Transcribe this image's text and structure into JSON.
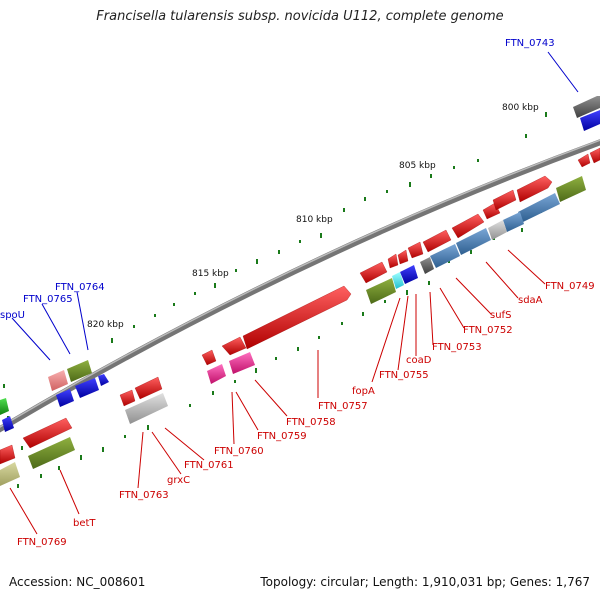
{
  "title": "Francisella tularensis subsp. novicida U112, complete genome",
  "footer": {
    "accession": "Accession: NC_008601",
    "topology": "Topology: circular; Length: 1,910,031 bp; Genes: 1,767"
  },
  "ticks": [
    "800 kbp",
    "805 kbp",
    "810 kbp",
    "815 kbp",
    "820 kbp"
  ],
  "gene_labels_blue": [
    "FTN_0743",
    "FTN_0764",
    "FTN_0765",
    "spoU"
  ],
  "gene_labels_red": [
    "FTN_0749",
    "sdaA",
    "sufS",
    "FTN_0752",
    "FTN_0753",
    "coaD",
    "FTN_0755",
    "fopA",
    "FTN_0757",
    "FTN_0758",
    "FTN_0759",
    "FTN_0760",
    "FTN_0761",
    "grxC",
    "FTN_0763",
    "betT",
    "FTN_0769"
  ],
  "colors": {
    "backbone": "#888888",
    "red_gene": "#e81010",
    "blue_gene": "#1010e0",
    "olive_gene": "#6b8e23",
    "steel_gene": "#4682b4",
    "grey_gene": "#c0c0c0",
    "pink_gene": "#ff3399",
    "salmon_gene": "#f08080",
    "green_dots": "#1a7a1a",
    "label_blue": "#0000cc",
    "label_red": "#cc0000"
  }
}
